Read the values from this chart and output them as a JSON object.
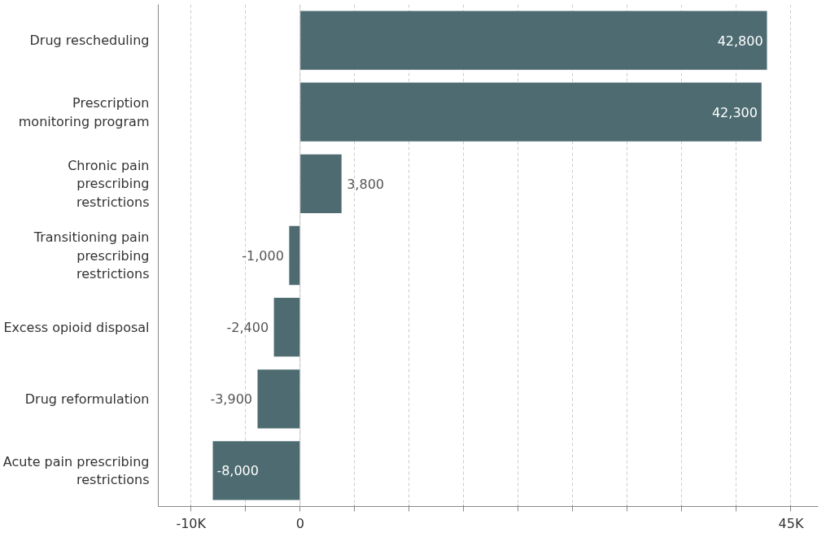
{
  "chart_data": {
    "type": "bar",
    "orientation": "horizontal",
    "categories": [
      "Drug rescheduling",
      "Prescription monitoring program",
      "Chronic pain prescribing restrictions",
      "Transitioning pain prescribing restrictions",
      "Excess opioid disposal",
      "Drug reformulation",
      "Acute pain prescribing restrictions"
    ],
    "values": [
      42800,
      42300,
      3800,
      -1000,
      -2400,
      -3900,
      -8000
    ],
    "value_labels": [
      "42,800",
      "42,300",
      "3,800",
      "-1,000",
      "-2,400",
      "-3,900",
      "-8,000"
    ],
    "color": "#4d6b71",
    "xlim": [
      -13000,
      47500
    ],
    "xticks": [
      {
        "value": -10000,
        "label": "-10K"
      },
      {
        "value": -5000,
        "label": null
      },
      0,
      {
        "value": 5000,
        "label": null
      },
      {
        "value": 10000,
        "label": null
      },
      {
        "value": 15000,
        "label": null
      },
      {
        "value": 20000,
        "label": null
      },
      {
        "value": 25000,
        "label": null
      },
      {
        "value": 30000,
        "label": null
      },
      {
        "value": 35000,
        "label": null
      },
      {
        "value": 40000,
        "label": null
      },
      {
        "value": 45000,
        "label": "45K"
      }
    ],
    "grid": "x",
    "line_style": "dashed"
  }
}
